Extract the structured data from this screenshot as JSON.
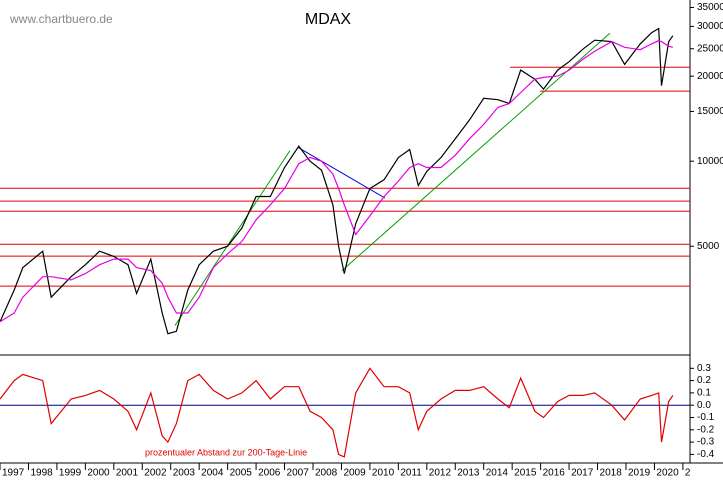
{
  "chart_data": [
    {
      "type": "line",
      "title": "MDAX",
      "source": "www.chartbuero.de",
      "log_scale": true,
      "xlim": [
        1997,
        2021.25
      ],
      "ylim": [
        2060,
        37200
      ],
      "yticks": [
        5000,
        10000,
        15000,
        20000,
        25000,
        30000,
        35000
      ],
      "x": [
        1997.0,
        1997.5,
        1997.8,
        1998.5,
        1998.8,
        1999.5,
        2000.0,
        2000.5,
        2001.0,
        2001.5,
        2001.8,
        2002.3,
        2002.7,
        2002.9,
        2003.2,
        2003.6,
        2004.0,
        2004.5,
        2005.0,
        2005.5,
        2006.0,
        2006.5,
        2007.0,
        2007.5,
        2007.9,
        2008.3,
        2008.7,
        2008.9,
        2009.1,
        2009.5,
        2010.0,
        2010.5,
        2011.0,
        2011.4,
        2011.7,
        2012.0,
        2012.5,
        2013.0,
        2013.5,
        2014.0,
        2014.5,
        2014.9,
        2015.3,
        2015.8,
        2016.1,
        2016.6,
        2017.0,
        2017.5,
        2017.9,
        2018.5,
        2018.95,
        2019.5,
        2019.9,
        2020.15,
        2020.25,
        2020.5,
        2020.65
      ],
      "series": [
        {
          "color": "#000000",
          "values": [
            2700,
            3500,
            4200,
            4800,
            3300,
            3900,
            4300,
            4800,
            4600,
            4300,
            3400,
            4500,
            2900,
            2450,
            2500,
            3500,
            4300,
            4800,
            5000,
            5800,
            7500,
            7500,
            9500,
            11300,
            10000,
            9300,
            7000,
            5000,
            4000,
            6000,
            8000,
            8600,
            10300,
            11000,
            8200,
            9200,
            10300,
            12000,
            14000,
            16700,
            16500,
            16000,
            21000,
            19500,
            18000,
            21000,
            22500,
            25000,
            26800,
            26500,
            22000,
            26000,
            28500,
            29500,
            18500,
            26500,
            27800
          ]
        },
        {
          "color": "#e600e6",
          "values": [
            2700,
            2900,
            3300,
            3900,
            3900,
            3800,
            4000,
            4300,
            4500,
            4500,
            4200,
            4100,
            3700,
            3300,
            2900,
            2900,
            3300,
            4200,
            4700,
            5200,
            6200,
            7000,
            8000,
            9800,
            10300,
            10000,
            9000,
            8000,
            7000,
            5500,
            6400,
            7500,
            8500,
            9500,
            9800,
            9500,
            9500,
            10500,
            12000,
            13500,
            15500,
            16000,
            17500,
            19500,
            19800,
            20000,
            21000,
            23000,
            24500,
            26500,
            25300,
            24800,
            26000,
            26700,
            26500,
            25500,
            25300
          ]
        }
      ],
      "hlines": [
        {
          "value": 8020,
          "color": "#e00000"
        },
        {
          "value": 7220,
          "color": "#e00000"
        },
        {
          "value": 6650,
          "color": "#e00000"
        },
        {
          "value": 5080,
          "color": "#e00000"
        },
        {
          "value": 4610,
          "color": "#e00000"
        },
        {
          "value": 3610,
          "color": "#e00000"
        },
        {
          "value": 21500,
          "from": 2014.93,
          "color": "#e00000"
        },
        {
          "value": 17700,
          "from": 2015.98,
          "color": "#e00000"
        }
      ],
      "trendlines": [
        {
          "x": [
            2003.15,
            2007.19
          ],
          "y": [
            2620,
            10900
          ],
          "color": "#00a000"
        },
        {
          "x": [
            2009.02,
            2018.44
          ],
          "y": [
            4100,
            28400
          ],
          "color": "#00a000"
        },
        {
          "x": [
            2007.47,
            2010.53
          ],
          "y": [
            11200,
            7400
          ],
          "color": "#0000e0"
        }
      ]
    },
    {
      "type": "line",
      "annotation": "prozentualer Abstand zur 200-Tage-Linie",
      "xlim": [
        1997,
        2021.25
      ],
      "ylim": [
        -0.47,
        0.4
      ],
      "xticks": [
        1997,
        1998,
        1999,
        2000,
        2001,
        2002,
        2003,
        2004,
        2005,
        2006,
        2007,
        2008,
        2009,
        2010,
        2011,
        2012,
        2013,
        2014,
        2015,
        2016,
        2017,
        2018,
        2019,
        2020,
        {
          "value": 2021,
          "label": "2"
        }
      ],
      "yticks": [
        0.3,
        0.2,
        0.1,
        {
          "value": 0,
          "label": "0.0"
        },
        -0.1,
        -0.2,
        -0.3,
        -0.4
      ],
      "zero_line": {
        "value": 0,
        "color": "#000080"
      },
      "x": [
        1997.0,
        1997.5,
        1997.8,
        1998.5,
        1998.8,
        1999.5,
        2000.0,
        2000.5,
        2001.0,
        2001.5,
        2001.8,
        2002.3,
        2002.7,
        2002.9,
        2003.2,
        2003.6,
        2004.0,
        2004.5,
        2005.0,
        2005.5,
        2006.0,
        2006.5,
        2007.0,
        2007.5,
        2007.9,
        2008.3,
        2008.7,
        2008.9,
        2009.1,
        2009.5,
        2010.0,
        2010.5,
        2011.0,
        2011.4,
        2011.7,
        2012.0,
        2012.5,
        2013.0,
        2013.5,
        2014.0,
        2014.5,
        2014.9,
        2015.3,
        2015.8,
        2016.1,
        2016.6,
        2017.0,
        2017.5,
        2017.9,
        2018.5,
        2018.95,
        2019.5,
        2019.9,
        2020.15,
        2020.25,
        2020.5,
        2020.65
      ],
      "series": [
        {
          "color": "#e00000",
          "values": [
            0.05,
            0.2,
            0.25,
            0.2,
            -0.15,
            0.05,
            0.08,
            0.12,
            0.05,
            -0.05,
            -0.2,
            0.1,
            -0.25,
            -0.3,
            -0.15,
            0.2,
            0.25,
            0.12,
            0.05,
            0.1,
            0.2,
            0.05,
            0.15,
            0.15,
            -0.05,
            -0.1,
            -0.2,
            -0.4,
            -0.42,
            0.1,
            0.3,
            0.15,
            0.15,
            0.1,
            -0.2,
            -0.05,
            0.05,
            0.12,
            0.12,
            0.15,
            0.05,
            -0.02,
            0.22,
            -0.05,
            -0.1,
            0.03,
            0.08,
            0.08,
            0.1,
            0.0,
            -0.12,
            0.05,
            0.08,
            0.1,
            -0.3,
            0.03,
            0.08
          ]
        }
      ]
    }
  ]
}
